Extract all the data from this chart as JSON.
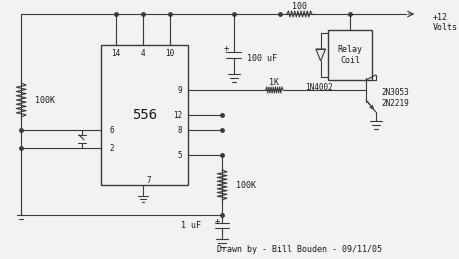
{
  "bg_color": "#f2f2f2",
  "line_color": "#3a3a3a",
  "text_color": "#1a1a1a",
  "attribution": "Drawn by - Bill Bouden - 09/11/05",
  "ic_label": "556",
  "r1_label": "100K",
  "r2_label": "100K",
  "r3_label": "1K",
  "r4_label": "100",
  "c1_label": "100 uF",
  "c2_label": "1 uF",
  "diode_label": "1N4002",
  "relay_label": "Relay\nCoil",
  "transistor_label": "2N3053\n2N2219",
  "vcc_label": "+12\nVolts",
  "p14": "14",
  "p4": "4",
  "p10": "10",
  "p9": "9",
  "p12": "12",
  "p8": "8",
  "p5": "5",
  "p6": "6",
  "p2": "2",
  "p7": "7"
}
